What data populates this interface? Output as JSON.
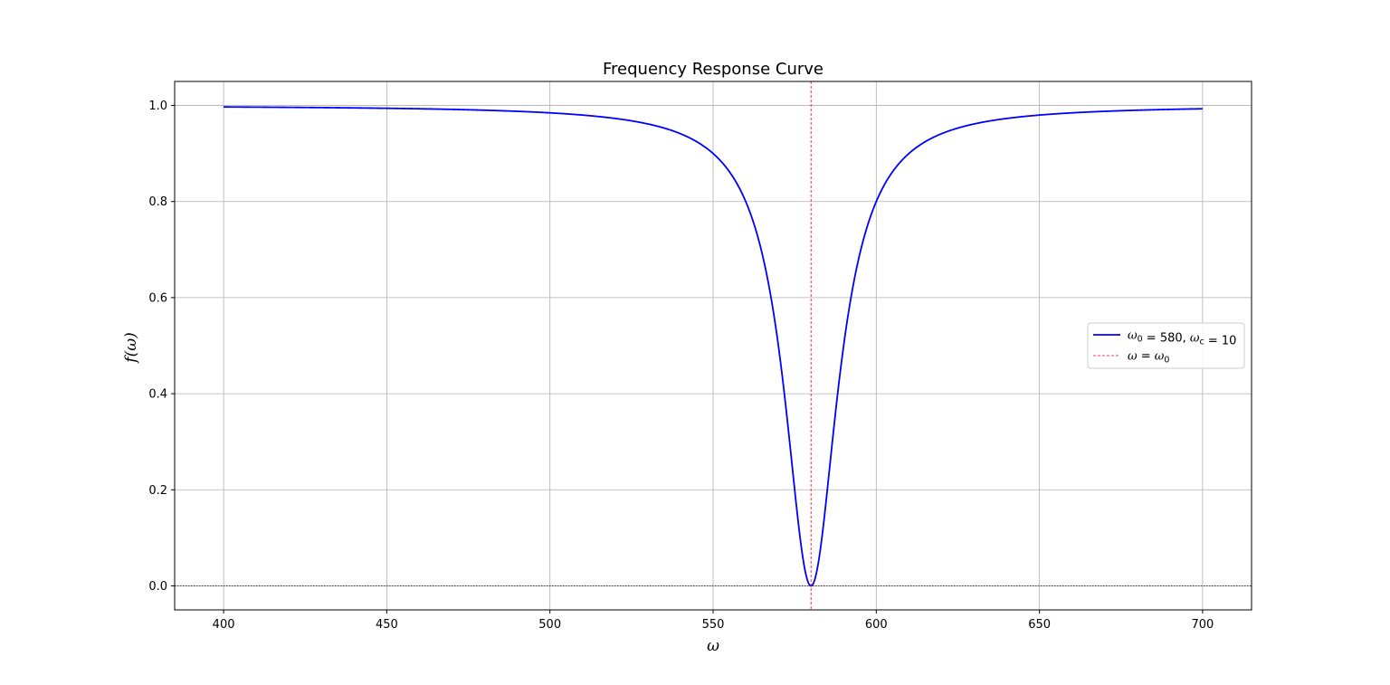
{
  "chart_data": {
    "type": "line",
    "title": "Frequency Response Curve",
    "xlabel": "ω",
    "ylabel": "f(ω)",
    "xlim": [
      385,
      715
    ],
    "ylim": [
      -0.05,
      1.05
    ],
    "xticks": [
      400,
      450,
      500,
      550,
      600,
      650,
      700
    ],
    "yticks": [
      0.0,
      0.2,
      0.4,
      0.6,
      0.8,
      1.0
    ],
    "xtick_labels": [
      "400",
      "450",
      "500",
      "550",
      "600",
      "650",
      "700"
    ],
    "ytick_labels": [
      "0.0",
      "0.2",
      "0.4",
      "0.6",
      "0.8",
      "1.0"
    ],
    "grid": true,
    "legend_position": "center-right",
    "series": [
      {
        "name": "ω0 = 580, ωc = 10",
        "legend": {
          "base": "ω",
          "sub": "0",
          "mid": " = 580, ",
          "base2": "ω",
          "sub2": "c",
          "end": " = 10"
        },
        "color": "#0000ff",
        "style": "solid",
        "omega0": 580,
        "omega_c": 10,
        "x": [
          400,
          450,
          500,
          530,
          550,
          560,
          565,
          570,
          573,
          575,
          577,
          578,
          579,
          579.5,
          580,
          580.5,
          581,
          582,
          583,
          585,
          587,
          590,
          595,
          600,
          610,
          630,
          650,
          700
        ],
        "y": [
          0.9969,
          0.9941,
          0.9846,
          0.9615,
          0.9,
          0.8,
          0.6923,
          0.5,
          0.3289,
          0.2,
          0.0826,
          0.0385,
          0.0099,
          0.0025,
          0.0,
          0.0025,
          0.0099,
          0.0385,
          0.0826,
          0.2,
          0.3289,
          0.5,
          0.6923,
          0.8,
          0.9,
          0.9615,
          0.98,
          0.9931
        ]
      },
      {
        "name": "ω = ω0",
        "legend": {
          "base": "ω",
          "mid": " = ",
          "base2": "ω",
          "sub2": "0"
        },
        "color": "#ff0000",
        "style": "dashed",
        "x": [
          580,
          580
        ],
        "y": [
          -0.05,
          1.05
        ]
      }
    ],
    "reference_line": {
      "y": 0,
      "color": "#000000",
      "style": "dotted"
    }
  }
}
